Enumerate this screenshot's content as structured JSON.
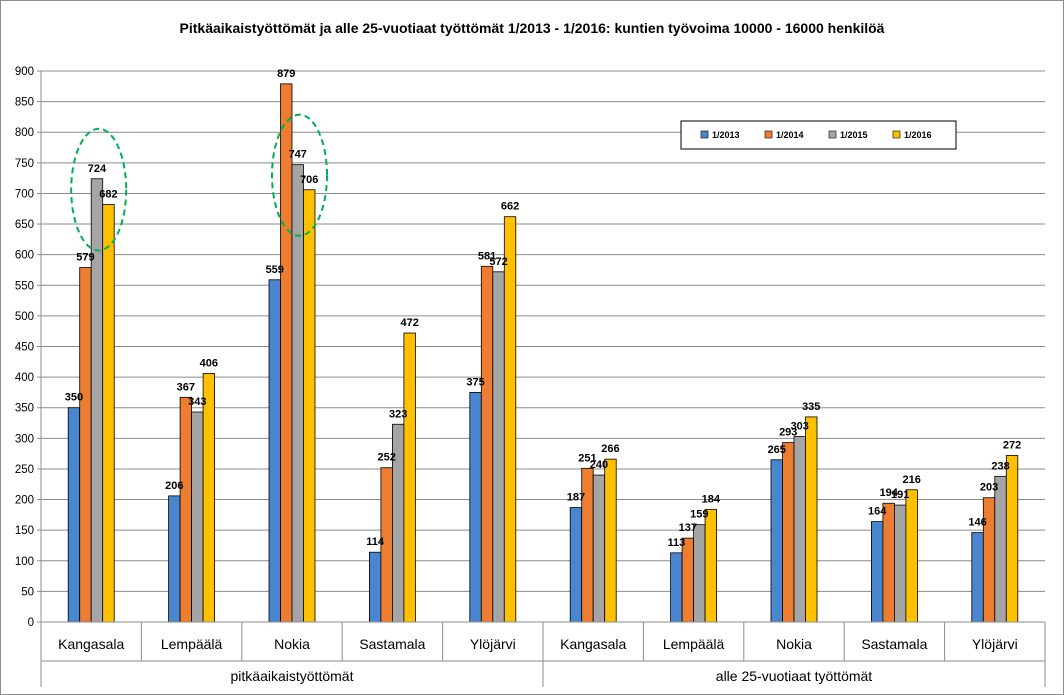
{
  "chart_data": {
    "type": "bar",
    "title": "Pitkäaikaistyöttömät ja alle 25-vuotiaat työttömät 1/2013 - 1/2016: kuntien työvoima 10000 - 16000 henkilöä",
    "groups": [
      "pitkäaikaistyöttömät",
      "alle 25-vuotiaat työttömät"
    ],
    "categories": [
      "Kangasala",
      "Lempäälä",
      "Nokia",
      "Sastamala",
      "Ylöjärvi",
      "Kangasala",
      "Lempäälä",
      "Nokia",
      "Sastamala",
      "Ylöjärvi"
    ],
    "category_group": [
      0,
      0,
      0,
      0,
      0,
      1,
      1,
      1,
      1,
      1
    ],
    "series": [
      {
        "name": "1/2013",
        "color": "#4a86cf",
        "values": [
          350,
          206,
          559,
          114,
          375,
          187,
          113,
          265,
          164,
          146
        ]
      },
      {
        "name": "1/2014",
        "color": "#ed7d31",
        "values": [
          579,
          367,
          879,
          252,
          581,
          251,
          137,
          293,
          194,
          203
        ]
      },
      {
        "name": "1/2015",
        "color": "#a5a5a5",
        "values": [
          724,
          343,
          747,
          323,
          572,
          240,
          159,
          303,
          191,
          238
        ]
      },
      {
        "name": "1/2016",
        "color": "#ffc000",
        "values": [
          682,
          406,
          706,
          472,
          662,
          266,
          184,
          335,
          216,
          272
        ]
      }
    ],
    "ylim": [
      0,
      900
    ],
    "yticks": [
      0,
      50,
      100,
      150,
      200,
      250,
      300,
      350,
      400,
      450,
      500,
      550,
      600,
      650,
      700,
      750,
      800,
      850,
      900
    ],
    "grid": true,
    "legend_position": "top-right",
    "xlabel": "",
    "ylabel": "",
    "annotations": [
      {
        "type": "dashed-ellipse",
        "color": "#00b050",
        "category_index": 0,
        "series": [
          "1/2015",
          "1/2016"
        ]
      },
      {
        "type": "dashed-ellipse",
        "color": "#00b050",
        "category_index": 2,
        "series": [
          "1/2015",
          "1/2016"
        ]
      }
    ]
  }
}
